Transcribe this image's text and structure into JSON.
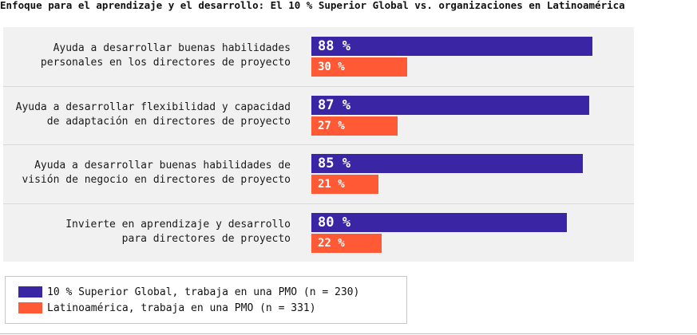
{
  "chart_data": {
    "type": "bar",
    "orientation": "horizontal",
    "title": "Enfoque para el aprendizaje y el desarrollo: El 10 % Superior Global vs. organizaciones en Latinoamérica",
    "categories": [
      [
        "Ayuda a desarrollar buenas habilidades",
        "personales en los directores de proyecto"
      ],
      [
        "Ayuda a desarrollar flexibilidad y capacidad",
        "de adaptación en directores de proyecto"
      ],
      [
        "Ayuda a desarrollar buenas habilidades de",
        "visión de negocio en directores de proyecto"
      ],
      [
        "Invierte en aprendizaje y desarrollo",
        "para directores de proyecto"
      ]
    ],
    "series": [
      {
        "name": "10 % Superior Global, trabaja en una PMO (n = 230)",
        "color": "#3a25a5",
        "values": [
          88,
          87,
          85,
          80
        ],
        "labels": [
          "88 %",
          "87 %",
          "85 %",
          "80 %"
        ]
      },
      {
        "name": "Latinoamérica, trabaja en una PMO (n = 331)",
        "color": "#ff5a35",
        "values": [
          30,
          27,
          21,
          22
        ],
        "labels": [
          "30 %",
          "27 %",
          "21 %",
          "22 %"
        ]
      }
    ],
    "xlim": [
      0,
      100
    ],
    "grid": false,
    "legend_position": "bottom-left"
  }
}
